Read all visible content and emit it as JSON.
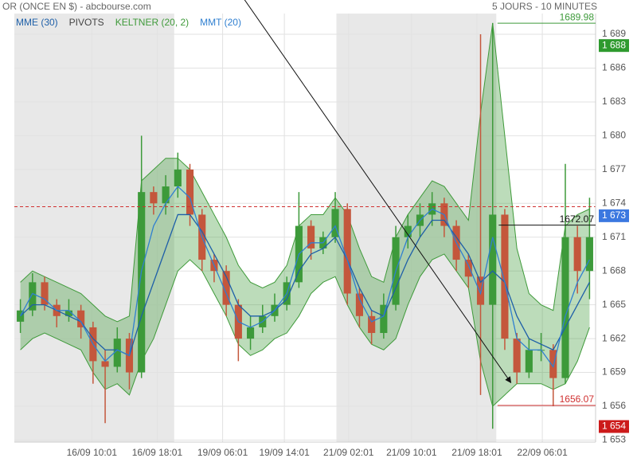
{
  "chart_data": {
    "type": "candlestick",
    "title": "OR (ONCE EN $) - abcbourse.com",
    "subtitle": "5 JOURS - 10 MINUTES",
    "xlim": [
      0,
      48
    ],
    "ylim": [
      1652.82,
      1690.84
    ],
    "yticks": [
      {
        "value": 1653,
        "label": "1 653"
      },
      {
        "value": 1656,
        "label": "1 656"
      },
      {
        "value": 1659,
        "label": "1 659"
      },
      {
        "value": 1662,
        "label": "1 662"
      },
      {
        "value": 1665,
        "label": "1 665"
      },
      {
        "value": 1668,
        "label": "1 668"
      },
      {
        "value": 1671,
        "label": "1 671"
      },
      {
        "value": 1674,
        "label": "1 674"
      },
      {
        "value": 1677,
        "label": "1 677"
      },
      {
        "value": 1680,
        "label": "1 680"
      },
      {
        "value": 1683,
        "label": "1 683"
      },
      {
        "value": 1686,
        "label": "1 686"
      },
      {
        "value": 1689,
        "label": "1 689"
      }
    ],
    "xticks": [
      {
        "value": 6.4,
        "label": "16/09 10:01"
      },
      {
        "value": 11.8,
        "label": "16/09 18:01"
      },
      {
        "value": 17.2,
        "label": "19/09 06:01"
      },
      {
        "value": 22.3,
        "label": "19/09 14:01"
      },
      {
        "value": 27.6,
        "label": "21/09 02:01"
      },
      {
        "value": 32.8,
        "label": "21/09 10:01"
      },
      {
        "value": 38.2,
        "label": "21/09 18:01"
      },
      {
        "value": 43.6,
        "label": "22/09 06:01"
      }
    ],
    "grid": true,
    "shaded_ranges": [
      [
        0,
        13.2
      ],
      [
        26.6,
        39.8
      ]
    ],
    "up_color": "#3d9a3a",
    "down_color": "#c4573c",
    "open": [
      1663.5,
      1664.5,
      1667,
      1665,
      1664,
      1664.5,
      1663,
      1660,
      1659.5,
      1662,
      1659,
      1675,
      1674,
      1675.5,
      1677,
      1673,
      1669,
      1668,
      1665,
      1662,
      1663,
      1664,
      1665,
      1667,
      1672,
      1670,
      1671,
      1673.5,
      1666,
      1664,
      1662.5,
      1665,
      1671,
      1672,
      1673,
      1674,
      1672,
      1669,
      1667.5,
      1665,
      1673,
      1662,
      1659,
      1661,
      1661,
      1658.5,
      1671,
      1668
    ],
    "high": [
      1665.5,
      1667.8,
      1667.5,
      1665.5,
      1665.5,
      1665,
      1663.5,
      1661,
      1663,
      1662.5,
      1680,
      1675.5,
      1676.5,
      1678.5,
      1677.5,
      1673.5,
      1669.5,
      1668.5,
      1665.5,
      1664,
      1665,
      1666,
      1667.5,
      1675,
      1672.5,
      1671.5,
      1675,
      1674,
      1666.5,
      1664.5,
      1666,
      1672,
      1673,
      1674,
      1675,
      1674.5,
      1672.5,
      1669.5,
      1689,
      1690,
      1673.5,
      1662.5,
      1662,
      1662.5,
      1661.5,
      1677.5,
      1672,
      1674.5
    ],
    "low": [
      1662.5,
      1664,
      1664.5,
      1663,
      1663.5,
      1662,
      1658,
      1654.5,
      1659,
      1657.5,
      1658.5,
      1673,
      1673,
      1674.5,
      1672,
      1668,
      1667,
      1664,
      1660,
      1661,
      1662.5,
      1663.5,
      1664.5,
      1666.5,
      1669,
      1669.5,
      1670.5,
      1665,
      1663,
      1661.5,
      1662,
      1664.5,
      1670,
      1671,
      1672,
      1671,
      1668,
      1666.5,
      1657,
      1654,
      1661,
      1658,
      1658.5,
      1660,
      1656,
      1658,
      1666,
      1665.5
    ],
    "close": [
      1664.5,
      1667,
      1665,
      1664,
      1664.5,
      1663,
      1660,
      1659.5,
      1662,
      1659,
      1675,
      1674,
      1675.5,
      1677,
      1673,
      1669,
      1668,
      1665,
      1662,
      1663,
      1664,
      1665,
      1667,
      1672,
      1670,
      1671,
      1673.5,
      1666,
      1664,
      1662.5,
      1665,
      1671,
      1672,
      1673,
      1674,
      1672,
      1669,
      1667.5,
      1665,
      1673,
      1662,
      1659,
      1661,
      1661,
      1658.5,
      1671,
      1668,
      1671
    ],
    "series": [
      {
        "name": "MME (30)",
        "kind": "line",
        "color": "#1e5fa8",
        "values": [
          1664,
          1665,
          1665,
          1664.5,
          1664,
          1663.5,
          1662,
          1661,
          1661,
          1660.5,
          1664,
          1667,
          1670,
          1673,
          1673,
          1671.5,
          1669.5,
          1667.5,
          1665,
          1664,
          1664,
          1664.5,
          1665.5,
          1668,
          1669.5,
          1670,
          1671,
          1669,
          1666.5,
          1664.5,
          1664,
          1666.5,
          1669,
          1671,
          1672.5,
          1672.5,
          1671,
          1669.5,
          1667,
          1668,
          1667,
          1664,
          1662,
          1661.5,
          1661,
          1663,
          1665,
          1667
        ]
      },
      {
        "name": "PIVOTS",
        "kind": "level",
        "color": "#d03030",
        "legend_color": "#444444",
        "value": 1673.7
      },
      {
        "name": "KELTNER (20, 2)",
        "kind": "band",
        "color": "#3f9a3a",
        "upper": [
          1667,
          1668,
          1667.5,
          1667,
          1666.5,
          1666,
          1665,
          1664,
          1663.5,
          1664,
          1676,
          1677,
          1678,
          1678,
          1677,
          1675,
          1673,
          1671,
          1668.5,
          1667,
          1666.5,
          1667,
          1668.5,
          1672,
          1673,
          1673,
          1674.5,
          1673,
          1670,
          1667.5,
          1667,
          1671,
          1673,
          1674.5,
          1676,
          1675.5,
          1674,
          1672.5,
          1682,
          1690,
          1680,
          1670,
          1666,
          1665,
          1664.5,
          1672,
          1673,
          1673.5
        ],
        "lower": [
          1661,
          1662,
          1662.5,
          1662,
          1661.5,
          1661,
          1659,
          1657.5,
          1658,
          1657,
          1660,
          1662,
          1665,
          1668,
          1669,
          1668,
          1666,
          1664,
          1661.5,
          1660.5,
          1661,
          1662,
          1662.5,
          1664,
          1666,
          1667,
          1667.5,
          1665,
          1663,
          1661.5,
          1661,
          1662,
          1665,
          1667.5,
          1669,
          1669.5,
          1668,
          1666.5,
          1660,
          1656,
          1657,
          1658,
          1658,
          1658,
          1657.5,
          1658,
          1660,
          1663
        ]
      },
      {
        "name": "MMT (20)",
        "kind": "line",
        "color": "#2f7fd0",
        "values": [
          1664,
          1666,
          1665.5,
          1664.5,
          1664.5,
          1663.5,
          1661.5,
          1660,
          1661,
          1660.5,
          1668,
          1672,
          1674,
          1675.5,
          1674.5,
          1671,
          1668.5,
          1666,
          1663.5,
          1663,
          1663.5,
          1664.5,
          1666,
          1669.5,
          1670.5,
          1670.5,
          1672,
          1669,
          1665.5,
          1663.5,
          1664,
          1668,
          1671,
          1672.5,
          1673.5,
          1673,
          1670.5,
          1668.5,
          1666,
          1671,
          1667,
          1662,
          1661,
          1661,
          1659.5,
          1664,
          1667,
          1669
        ]
      }
    ],
    "trendline": {
      "color": "#111111",
      "points": [
        [
          18.6,
          1692.7
        ],
        [
          41.0,
          1658.1
        ]
      ]
    },
    "levels": [
      {
        "value": 1689.98,
        "color": "#3d9a3a",
        "start": 39.9
      },
      {
        "value": 1672.07,
        "color": "#111111",
        "start": 40.0
      },
      {
        "value": 1656.07,
        "color": "#d03030",
        "start": 39.9
      }
    ],
    "price_boxes": [
      {
        "value": 1688,
        "label": "1 688",
        "color": "#2e9a2e"
      },
      {
        "value": 1672.9,
        "label": "1 673",
        "color": "#3b78e0"
      },
      {
        "value": 1654.2,
        "label": "1 654",
        "color": "#cc1a1a"
      }
    ]
  }
}
